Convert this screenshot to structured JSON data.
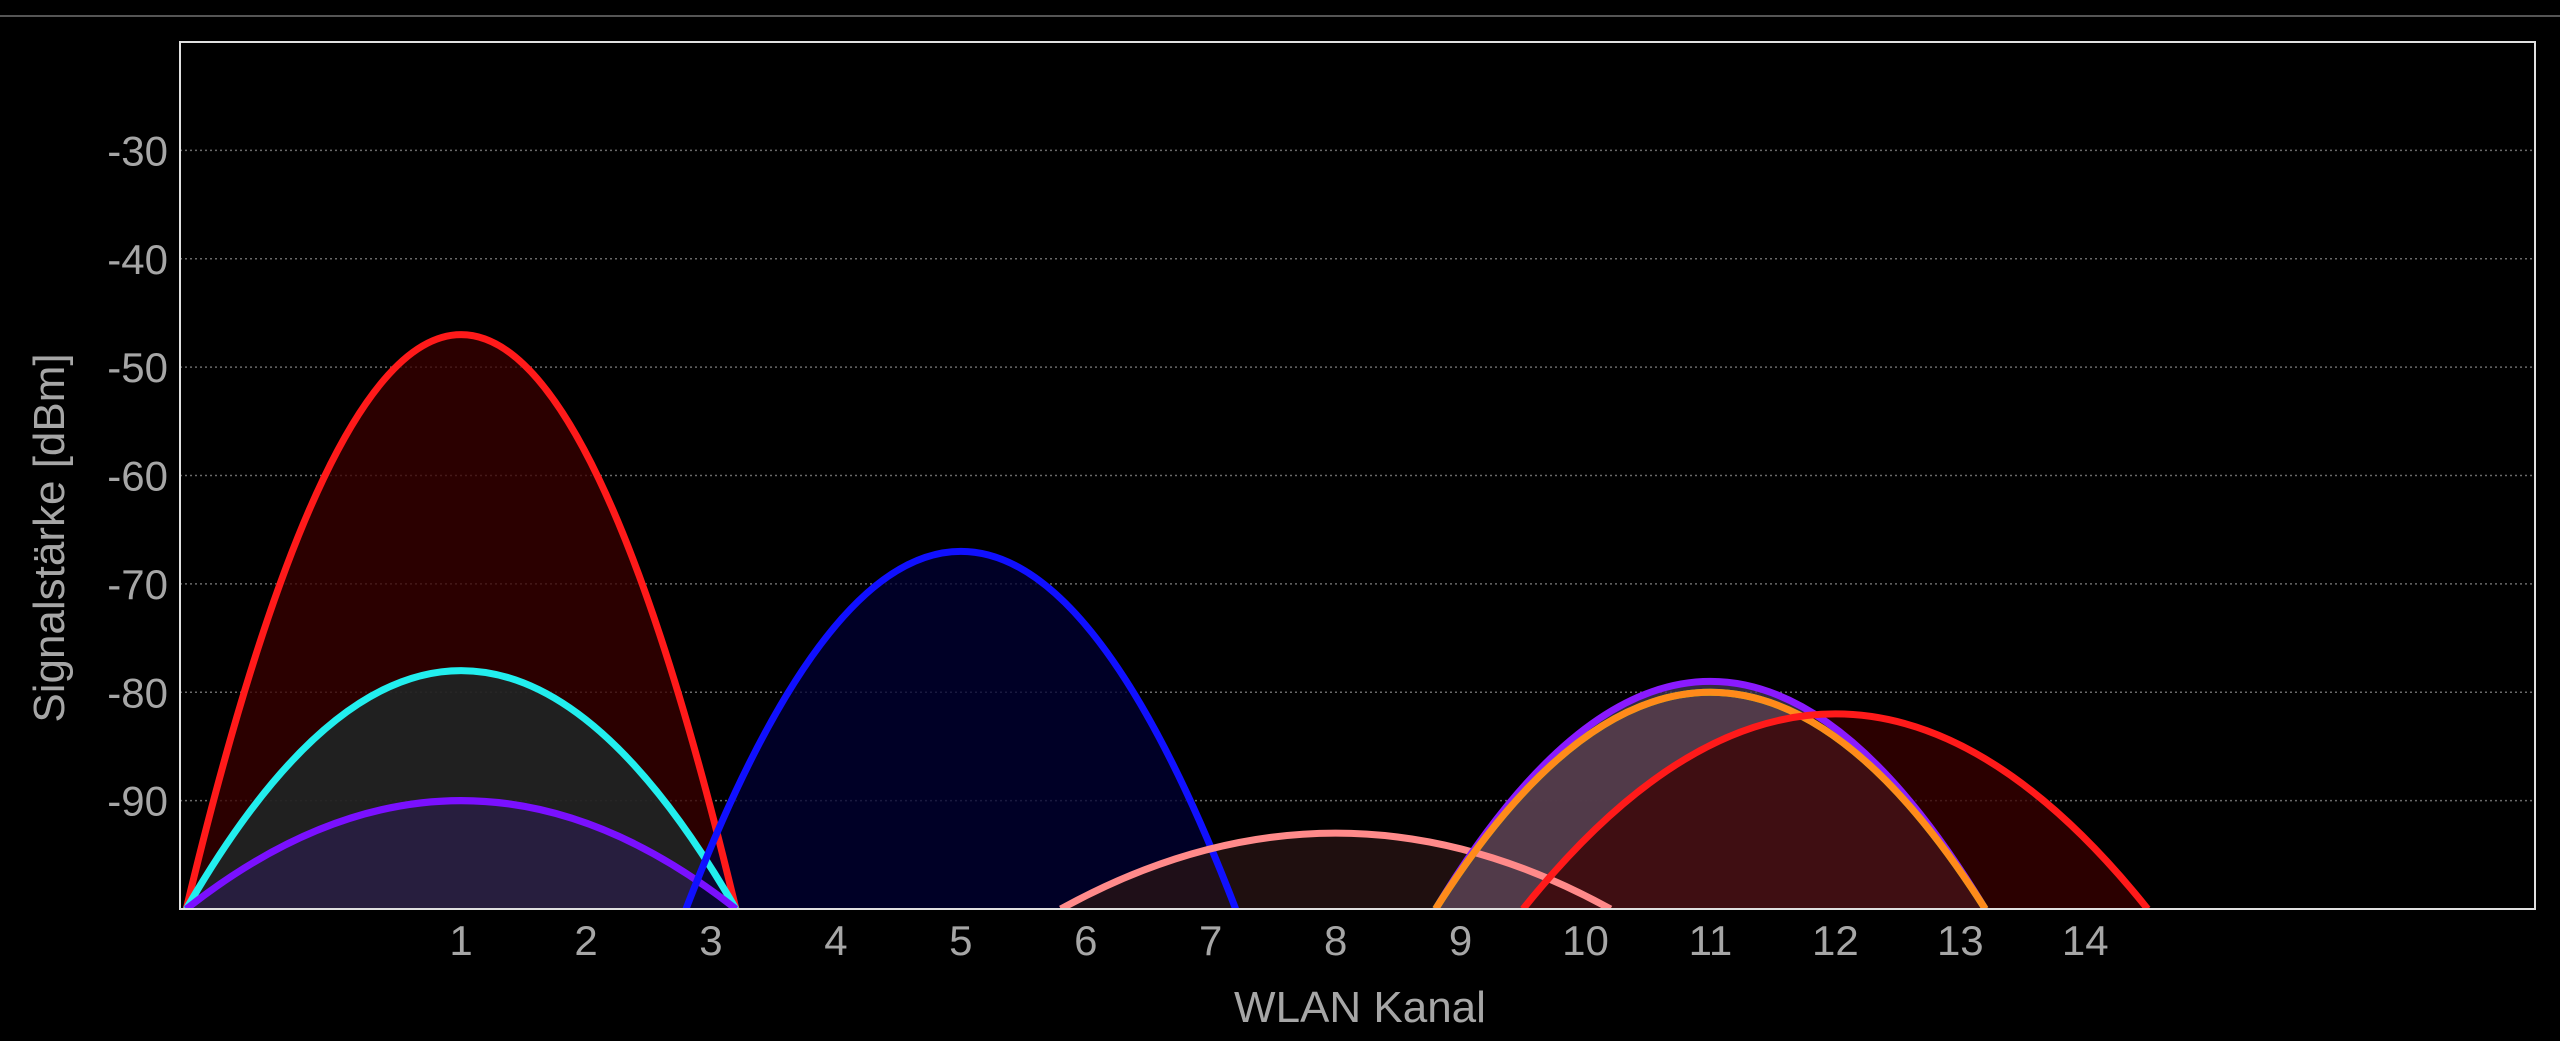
{
  "chart_data": {
    "type": "line",
    "xlabel": "WLAN Kanal",
    "ylabel": "Signalstärke [dBm]",
    "xlim": [
      -1.25,
      17.6
    ],
    "ylim": [
      -100,
      -20
    ],
    "x_ticks": [
      1,
      2,
      3,
      4,
      5,
      6,
      7,
      8,
      9,
      10,
      11,
      12,
      13,
      14
    ],
    "y_ticks": [
      -30,
      -40,
      -50,
      -60,
      -70,
      -80,
      -90
    ],
    "grid": "horizontal-dotted",
    "series": [
      {
        "label_text": "",
        "channel": 1,
        "peak": -47,
        "half_width": 2.2,
        "color": "#ff1a1a",
        "fill": "#3a0000"
      },
      {
        "label_text": "",
        "channel": 1,
        "peak": -78,
        "half_width": 2.2,
        "color": "#22eeee",
        "fill": "#1e2b2b"
      },
      {
        "label_text": "",
        "channel": 1,
        "peak": -90,
        "half_width": 2.2,
        "color": "#7a10ff",
        "fill": "#2a1e48"
      },
      {
        "label_text": "",
        "channel": 5,
        "peak": -67,
        "half_width": 2.2,
        "color": "#1010ff",
        "fill": "#000033"
      },
      {
        "label_text": "",
        "channel": 8,
        "peak": -93,
        "half_width": 2.2,
        "color": "#ff8a8a",
        "fill": "#2a1414"
      },
      {
        "label_text": "",
        "channel": 11,
        "peak": -79,
        "half_width": 2.2,
        "color": "#8a1aff",
        "fill": "#463a58"
      },
      {
        "label_text": "",
        "channel": 11,
        "peak": -80,
        "half_width": 2.2,
        "color": "#33ff33",
        "fill": "#3a3a4a"
      },
      {
        "label_text": "",
        "channel": 11,
        "peak": -80,
        "half_width": 2.2,
        "color": "#ff8a1a",
        "fill": "#5a3c4a"
      },
      {
        "label_text": "",
        "channel": 12,
        "peak": -82,
        "half_width": 2.5,
        "color": "#ff1a1a",
        "fill": "#3a0000"
      }
    ]
  }
}
